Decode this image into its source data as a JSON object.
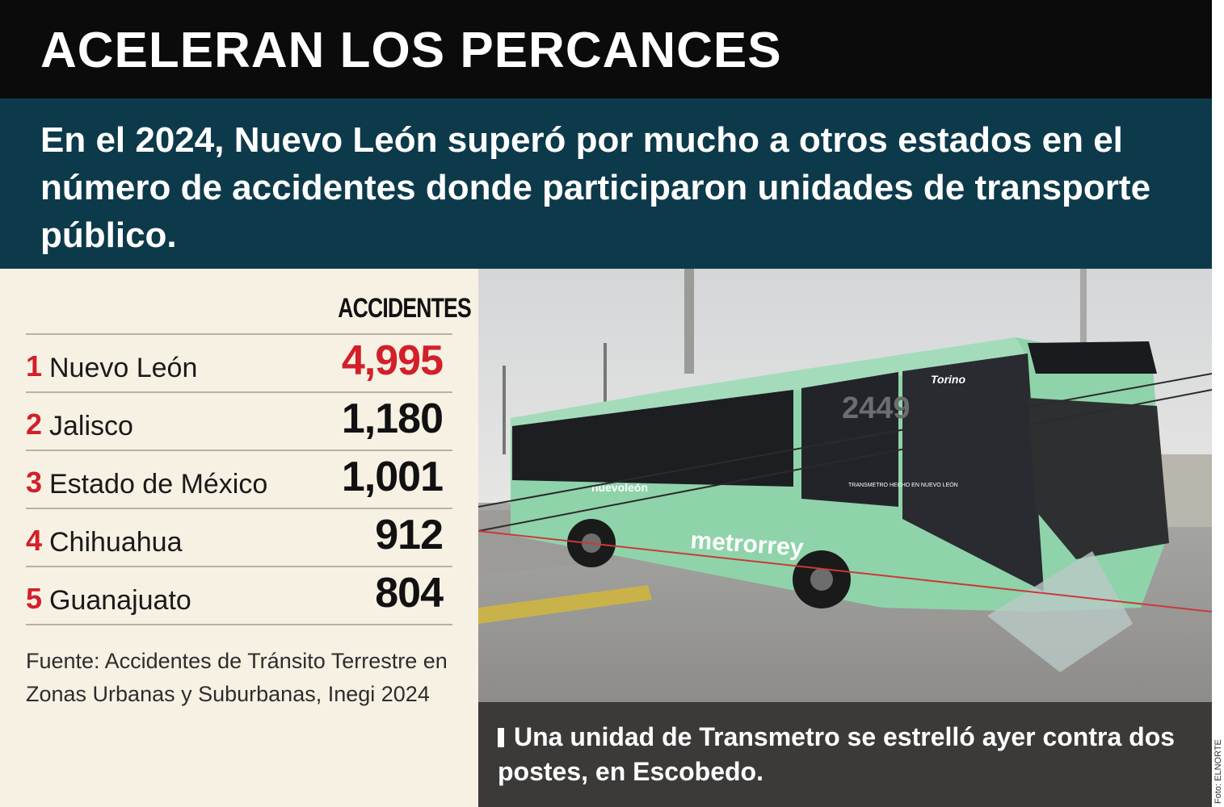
{
  "headline": "ACELERAN LOS PERCANCES",
  "deck": "En el 2024, Nuevo León superó por mucho a otros estados en el número de accidentes donde participaron unidades de transporte público.",
  "table": {
    "column_header": "ACCIDENTES",
    "rows": [
      {
        "rank": "1",
        "state": "Nuevo León",
        "value": "4,995"
      },
      {
        "rank": "2",
        "state": "Jalisco",
        "value": "1,180"
      },
      {
        "rank": "3",
        "state": "Estado de México",
        "value": "1,001"
      },
      {
        "rank": "4",
        "state": "Chihuahua",
        "value": "912"
      },
      {
        "rank": "5",
        "state": "Guanajuato",
        "value": "804"
      }
    ]
  },
  "source": "Fuente: Accidentes de Tránsito Terrestre en Zonas Urbanas y Suburbanas, Inegi 2024",
  "photo": {
    "bus_route_number": "2449",
    "bus_brand": "metrorrey",
    "bus_model": "Torino",
    "bus_side_label": "nuevoleón",
    "bus_door_label": "TRANSMETRO HECHO EN NUEVO LEÓN"
  },
  "caption": "Una unidad de Transmetro se estrelló ayer contra dos postes, en Escobedo.",
  "credit": "Foto: ELNORTE",
  "colors": {
    "title_bg": "#0b0b0b",
    "deck_bg": "#0d3a4b",
    "panel_bg": "#f7f1e3",
    "accent_red": "#d1202a",
    "caption_bg": "#3c3a38",
    "bus_green": "#8fd3aa"
  }
}
